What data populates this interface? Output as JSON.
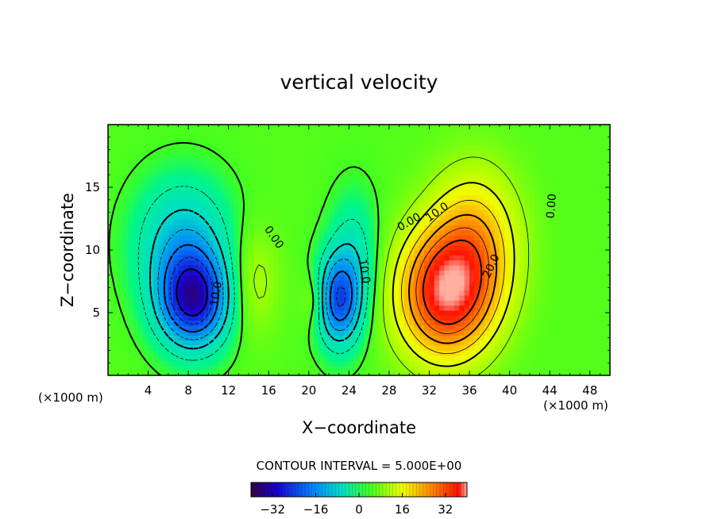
{
  "chart_data": {
    "type": "heatmap",
    "title": "vertical velocity",
    "xlabel": "X−coordinate",
    "ylabel": "Z−coordinate",
    "x_unit_left": "(×1000 m)",
    "x_unit_right": "(×1000 m)",
    "xlim": [
      0,
      50
    ],
    "ylim": [
      0,
      20
    ],
    "x_ticks": [
      4,
      8,
      12,
      16,
      20,
      24,
      28,
      32,
      36,
      40,
      44,
      48
    ],
    "y_ticks": [
      5,
      10,
      15
    ],
    "contour_interval_text": "CONTOUR INTERVAL = 5.000E+00",
    "colorbar": {
      "min": -40,
      "max": 40,
      "ticks": [
        -32,
        -16,
        0,
        16,
        32
      ],
      "tick_labels": [
        "−32",
        "−16",
        "0",
        "16",
        "32"
      ]
    },
    "features": [
      {
        "label": "updraft",
        "x": 33.5,
        "z": 6.5,
        "peak": 33,
        "sx": 3.2,
        "sz": 3.5
      },
      {
        "label": "updraft",
        "x": 36.5,
        "z": 10.5,
        "peak": 17,
        "sx": 3.0,
        "sz": 4.0
      },
      {
        "label": "updraft",
        "x": 14.5,
        "z": 7.5,
        "peak": 6,
        "sx": 1.8,
        "sz": 3.0
      },
      {
        "label": "updraft",
        "x": 20.5,
        "z": 6.0,
        "peak": 5,
        "sx": 0.9,
        "sz": 1.5
      },
      {
        "label": "downdraft",
        "x": 8.5,
        "z": 6.0,
        "peak": -31,
        "sx": 2.4,
        "sz": 2.6
      },
      {
        "label": "downdraft",
        "x": 7.5,
        "z": 10.5,
        "peak": -14,
        "sx": 3.2,
        "sz": 3.5
      },
      {
        "label": "downdraft",
        "x": 23.0,
        "z": 6.0,
        "peak": -24,
        "sx": 1.5,
        "sz": 2.5
      },
      {
        "label": "downdraft",
        "x": 24.5,
        "z": 9.5,
        "peak": -8,
        "sx": 1.7,
        "sz": 3.5
      }
    ],
    "contour_labels": [
      {
        "text": "10.0",
        "x": 10.8,
        "z": 6.5,
        "angle": -80
      },
      {
        "text": "0.00",
        "x": 16.5,
        "z": 11.0,
        "angle": 55
      },
      {
        "text": "10.0",
        "x": 25.5,
        "z": 8.3,
        "angle": 80
      },
      {
        "text": "0.00",
        "x": 30.0,
        "z": 12.2,
        "angle": -30
      },
      {
        "text": "10.0",
        "x": 32.8,
        "z": 13.0,
        "angle": -35
      },
      {
        "text": "20.0",
        "x": 38.2,
        "z": 8.7,
        "angle": -65
      },
      {
        "text": "0.00",
        "x": 44.2,
        "z": 13.5,
        "angle": -85
      }
    ]
  }
}
